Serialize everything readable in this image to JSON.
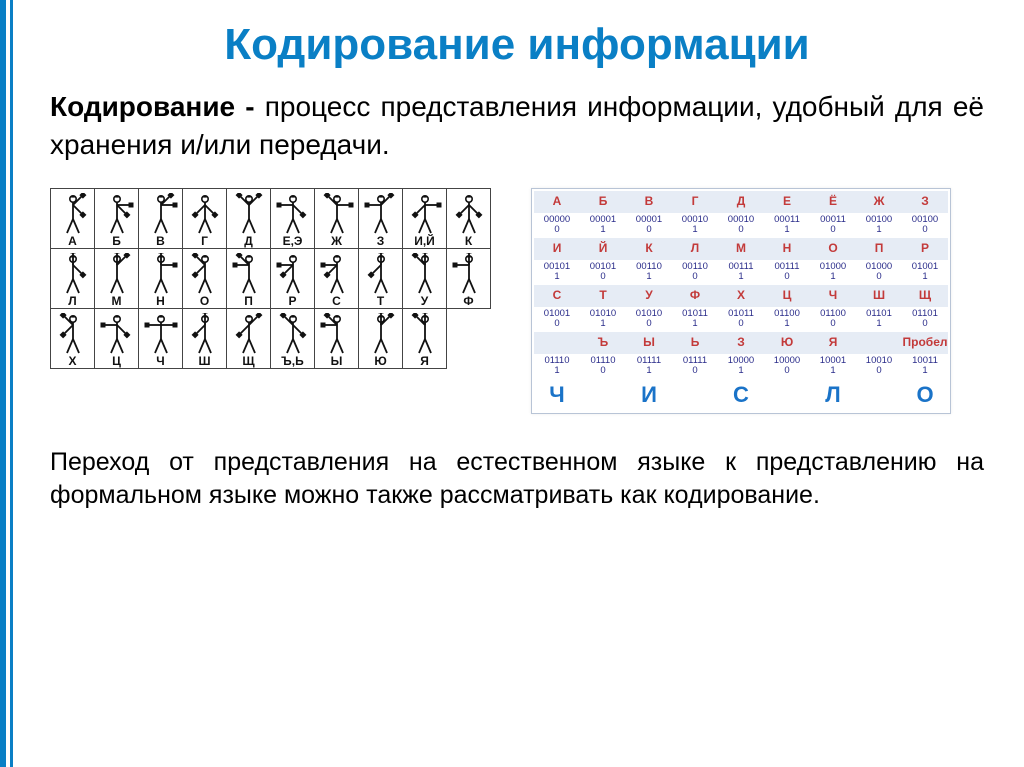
{
  "title": "Кодирование информации",
  "definition": {
    "bold": "Кодирование - ",
    "rest": "процесс представления информации, удобный для её хранения и/или передачи."
  },
  "semaphore": {
    "rows": [
      [
        {
          "l": "А",
          "a1": -45,
          "a2": -135
        },
        {
          "l": "Б",
          "a1": -45,
          "a2": -90
        },
        {
          "l": "В",
          "a1": -90,
          "a2": -135
        },
        {
          "l": "Г",
          "a1": -45,
          "a2": 45
        },
        {
          "l": "Д",
          "a1": -135,
          "a2": 135
        },
        {
          "l": "Е,Э",
          "a1": -45,
          "a2": 90
        },
        {
          "l": "Ж",
          "a1": -90,
          "a2": 135
        },
        {
          "l": "З",
          "a1": -135,
          "a2": 90
        },
        {
          "l": "И,Й",
          "a1": -90,
          "a2": 45
        },
        {
          "l": "К",
          "a1": 45,
          "a2": -45
        }
      ],
      [
        {
          "l": "Л",
          "a1": -45,
          "a2": 180
        },
        {
          "l": "М",
          "a1": -135,
          "a2": 180
        },
        {
          "l": "Н",
          "a1": -90,
          "a2": 180
        },
        {
          "l": "О",
          "a1": 45,
          "a2": 135
        },
        {
          "l": "П",
          "a1": 90,
          "a2": 135
        },
        {
          "l": "Р",
          "a1": 45,
          "a2": 90
        },
        {
          "l": "С",
          "a1": 90,
          "a2": 45
        },
        {
          "l": "Т",
          "a1": 180,
          "a2": 45
        },
        {
          "l": "У",
          "a1": 135,
          "a2": 180
        },
        {
          "l": "Ф",
          "a1": 90,
          "a2": 180
        }
      ],
      [
        {
          "l": "Х",
          "a1": 135,
          "a2": 45
        },
        {
          "l": "Ц",
          "a1": 90,
          "a2": -45
        },
        {
          "l": "Ч",
          "a1": -90,
          "a2": 90
        },
        {
          "l": "Ш",
          "a1": 45,
          "a2": 180
        },
        {
          "l": "Щ",
          "a1": -135,
          "a2": 45
        },
        {
          "l": "Ъ,Ь",
          "a1": 135,
          "a2": -45
        },
        {
          "l": "Ы",
          "a1": 135,
          "a2": 90
        },
        {
          "l": "Ю",
          "a1": 180,
          "a2": -135
        },
        {
          "l": "Я",
          "a1": 180,
          "a2": 135
        }
      ]
    ],
    "body_color": "#111111",
    "flag_color": "#111111"
  },
  "binary": {
    "header_color": "#c33a3a",
    "header_bg": "#e6ecf5",
    "data_color": "#2a2c8a",
    "word_color": "#1a73c8",
    "groups": [
      {
        "hdr": [
          "А",
          "Б",
          "В",
          "Г",
          "Д",
          "Е",
          "Ё",
          "Ж",
          "З"
        ],
        "bin": [
          "00000",
          "00001",
          "00001",
          "00010",
          "00010",
          "00011",
          "00011",
          "00100",
          "00100"
        ],
        "dec": [
          "0",
          "1",
          "0",
          "1",
          "0",
          "1",
          "0",
          "1",
          "0"
        ]
      },
      {
        "hdr": [
          "И",
          "Й",
          "К",
          "Л",
          "М",
          "Н",
          "О",
          "П",
          "Р"
        ],
        "bin": [
          "00101",
          "00101",
          "00110",
          "00110",
          "00111",
          "00111",
          "01000",
          "01000",
          "01001"
        ],
        "dec": [
          "1",
          "0",
          "1",
          "0",
          "1",
          "0",
          "1",
          "0",
          "1"
        ]
      },
      {
        "hdr": [
          "С",
          "Т",
          "У",
          "Ф",
          "Х",
          "Ц",
          "Ч",
          "Ш",
          "Щ"
        ],
        "bin": [
          "01001",
          "01010",
          "01010",
          "01011",
          "01011",
          "01100",
          "01100",
          "01101",
          "01101"
        ],
        "dec": [
          "0",
          "1",
          "0",
          "1",
          "0",
          "1",
          "0",
          "1",
          "0"
        ]
      },
      {
        "hdr": [
          "",
          "Ъ",
          "Ы",
          "Ь",
          "З",
          "Ю",
          "Я",
          "",
          "Пробел"
        ],
        "bin": [
          "",
          "",
          "",
          "",
          "",
          "",
          "",
          "",
          ""
        ],
        "dec": [
          "",
          "",
          "",
          "",
          "",
          "",
          "",
          "",
          ""
        ]
      },
      {
        "hdr": [
          "",
          "",
          "",
          "",
          "",
          "",
          "",
          "",
          ""
        ],
        "bin": [
          "01110",
          "01110",
          "01111",
          "01111",
          "10000",
          "10000",
          "10001",
          "10010",
          "10011"
        ],
        "dec": [
          "1",
          "0",
          "1",
          "0",
          "1",
          "0",
          "1",
          "0",
          "1"
        ]
      }
    ],
    "word": [
      "Ч",
      "",
      "И",
      "",
      "С",
      "",
      "Л",
      "",
      "О"
    ]
  },
  "footer": "Переход от представления на естественном языке к представлению на формальном языке можно также рассматривать как кодирование."
}
